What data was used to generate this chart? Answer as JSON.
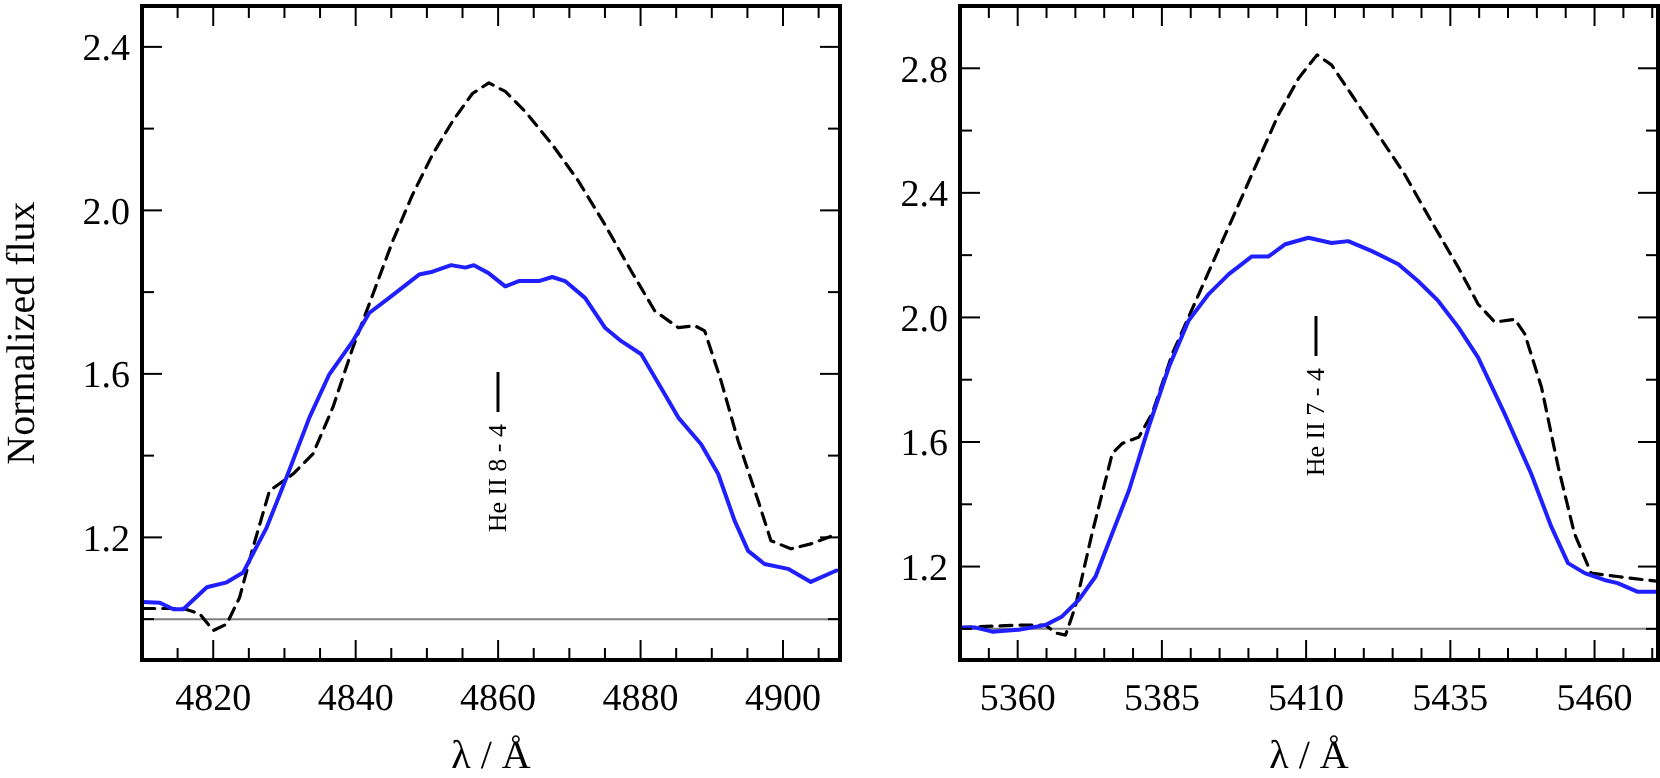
{
  "chart_data": [
    {
      "type": "line",
      "xlabel": "λ / Å",
      "ylabel": "Normalized flux",
      "xlim": [
        4810,
        4908
      ],
      "ylim": [
        0.9,
        2.5
      ],
      "xticks": [
        {
          "value": 4810,
          "label": null
        },
        {
          "value": 4815,
          "label": null
        },
        4820,
        {
          "value": 4825,
          "label": null
        },
        {
          "value": 4830,
          "label": null
        },
        {
          "value": 4835,
          "label": null
        },
        4840,
        {
          "value": 4845,
          "label": null
        },
        {
          "value": 4850,
          "label": null
        },
        {
          "value": 4855,
          "label": null
        },
        4860,
        {
          "value": 4865,
          "label": null
        },
        {
          "value": 4870,
          "label": null
        },
        {
          "value": 4875,
          "label": null
        },
        4880,
        {
          "value": 4885,
          "label": null
        },
        {
          "value": 4890,
          "label": null
        },
        {
          "value": 4895,
          "label": null
        },
        4900,
        {
          "value": 4905,
          "label": null
        }
      ],
      "yticks": [
        {
          "value": 1.0,
          "label": null
        },
        1.2,
        {
          "value": 1.4,
          "label": null
        },
        1.6,
        {
          "value": 1.8,
          "label": null
        },
        {
          "value": 2,
          "label": "2.0"
        },
        {
          "value": 2.2,
          "label": null
        },
        2.4
      ],
      "grid": false,
      "ref_lines": [
        {
          "axis": "y",
          "value": 1.0,
          "color": "#808080"
        }
      ],
      "annotations": [
        "He II 8 - 4"
      ],
      "series": [
        {
          "color": "#000000",
          "line_style": "dashed",
          "x": [
            4810.1,
            4815.8,
            4818.1,
            4820,
            4821.9,
            4823.7,
            4825.6,
            4827.9,
            4831.2,
            4834,
            4836.8,
            4839.6,
            4842.4,
            4845.2,
            4848,
            4850.8,
            4853.6,
            4856.4,
            4858.7,
            4861,
            4863.8,
            4867.6,
            4871.3,
            4875,
            4878.7,
            4882,
            4885.3,
            4887.6,
            4889,
            4891.3,
            4893.7,
            4896.5,
            4898.3,
            4901.1,
            4903.9,
            4907.5
          ],
          "values": [
            1.026,
            1.026,
            1.013,
            0.972,
            0.988,
            1.053,
            1.176,
            1.314,
            1.355,
            1.404,
            1.518,
            1.664,
            1.794,
            1.925,
            2.039,
            2.137,
            2.218,
            2.286,
            2.312,
            2.291,
            2.242,
            2.161,
            2.071,
            1.965,
            1.851,
            1.754,
            1.713,
            1.718,
            1.705,
            1.583,
            1.436,
            1.29,
            1.192,
            1.172,
            1.184,
            1.208
          ]
        },
        {
          "color": "#1f1fff",
          "line_style": "solid",
          "x": [
            4810.1,
            4812.5,
            4814.4,
            4815.8,
            4819.1,
            4821.9,
            4824.2,
            4827.5,
            4830.3,
            4833.5,
            4836.3,
            4839.6,
            4841.9,
            4844.7,
            4848.9,
            4850.8,
            4853.4,
            4855.4,
            4856.6,
            4858.7,
            4861,
            4862.9,
            4865.7,
            4867.6,
            4869.4,
            4872.2,
            4875,
            4877.3,
            4880.1,
            4883.4,
            4885.3,
            4888.5,
            4890.9,
            4893.2,
            4895.1,
            4897.4,
            4900.7,
            4903.9,
            4907.5
          ],
          "values": [
            1.042,
            1.04,
            1.024,
            1.024,
            1.078,
            1.09,
            1.114,
            1.224,
            1.347,
            1.493,
            1.599,
            1.68,
            1.749,
            1.786,
            1.843,
            1.85,
            1.866,
            1.86,
            1.866,
            1.846,
            1.814,
            1.827,
            1.827,
            1.837,
            1.827,
            1.786,
            1.713,
            1.68,
            1.648,
            1.55,
            1.493,
            1.428,
            1.355,
            1.241,
            1.167,
            1.135,
            1.123,
            1.091,
            1.119
          ]
        }
      ]
    },
    {
      "type": "line",
      "xlabel": "λ / Å",
      "xlim": [
        5350,
        5471
      ],
      "ylim": [
        0.9,
        3.0
      ],
      "xticks": [
        {
          "value": 5350,
          "label": null
        },
        {
          "value": 5355,
          "label": null
        },
        5360,
        {
          "value": 5365,
          "label": null
        },
        {
          "value": 5370,
          "label": null
        },
        {
          "value": 5375,
          "label": null
        },
        {
          "value": 5380,
          "label": null
        },
        5385,
        {
          "value": 5390,
          "label": null
        },
        {
          "value": 5395,
          "label": null
        },
        {
          "value": 5400,
          "label": null
        },
        {
          "value": 5405,
          "label": null
        },
        5410,
        {
          "value": 5415,
          "label": null
        },
        {
          "value": 5420,
          "label": null
        },
        {
          "value": 5425,
          "label": null
        },
        {
          "value": 5430,
          "label": null
        },
        5435,
        {
          "value": 5440,
          "label": null
        },
        {
          "value": 5445,
          "label": null
        },
        {
          "value": 5450,
          "label": null
        },
        {
          "value": 5455,
          "label": null
        },
        5460,
        {
          "value": 5465,
          "label": null
        },
        {
          "value": 5470,
          "label": null
        }
      ],
      "yticks": [
        {
          "value": 1.0,
          "label": null
        },
        1.2,
        {
          "value": 1.4,
          "label": null
        },
        1.6,
        {
          "value": 1.8,
          "label": null
        },
        {
          "value": 2,
          "label": "2.0"
        },
        {
          "value": 2.2,
          "label": null
        },
        2.4,
        {
          "value": 2.6,
          "label": null
        },
        2.8
      ],
      "grid": false,
      "ref_lines": [
        {
          "axis": "y",
          "value": 1.0,
          "color": "#808080"
        }
      ],
      "annotations": [
        "He II 7 - 4"
      ],
      "series": [
        {
          "color": "#000000",
          "line_style": "dashed",
          "x": [
            5350,
            5354.5,
            5360.2,
            5364.8,
            5366.6,
            5368.3,
            5370,
            5372.9,
            5376.4,
            5378.1,
            5381,
            5383.3,
            5386.8,
            5391.4,
            5396,
            5400.6,
            5405.2,
            5408.7,
            5411.9,
            5414.4,
            5417.9,
            5422.5,
            5427.1,
            5431.7,
            5436.4,
            5439.8,
            5442.7,
            5446.2,
            5447.9,
            5450.8,
            5453.7,
            5456.5,
            5459.4,
            5464,
            5470.7
          ],
          "values": [
            1.004,
            1.008,
            1.012,
            1.012,
            0.987,
            0.98,
            1.072,
            1.307,
            1.563,
            1.595,
            1.616,
            1.691,
            1.883,
            2.075,
            2.267,
            2.459,
            2.651,
            2.768,
            2.843,
            2.811,
            2.715,
            2.587,
            2.459,
            2.309,
            2.16,
            2.043,
            1.985,
            1.994,
            1.947,
            1.776,
            1.52,
            1.307,
            1.179,
            1.168,
            1.153
          ]
        },
        {
          "color": "#1f1fff",
          "line_style": "solid",
          "x": [
            5350,
            5352.7,
            5355.6,
            5360.2,
            5364.8,
            5367.7,
            5370.6,
            5373.5,
            5376.4,
            5379.3,
            5382.7,
            5386.2,
            5389.6,
            5393.1,
            5396.6,
            5400.6,
            5403.5,
            5406.4,
            5410.4,
            5414.4,
            5417.3,
            5421.4,
            5426,
            5429.4,
            5432.9,
            5436.4,
            5439.8,
            5444.4,
            5449,
            5452.5,
            5455.4,
            5458.3,
            5461.7,
            5464,
            5467.5,
            5470.7
          ],
          "values": [
            1.004,
            1.004,
            0.991,
            0.997,
            1.012,
            1.04,
            1.093,
            1.168,
            1.307,
            1.445,
            1.648,
            1.84,
            1.989,
            2.075,
            2.139,
            2.196,
            2.196,
            2.235,
            2.256,
            2.239,
            2.245,
            2.213,
            2.171,
            2.117,
            2.053,
            1.968,
            1.872,
            1.691,
            1.499,
            1.328,
            1.211,
            1.179,
            1.157,
            1.147,
            1.119,
            1.119
          ]
        }
      ]
    }
  ]
}
